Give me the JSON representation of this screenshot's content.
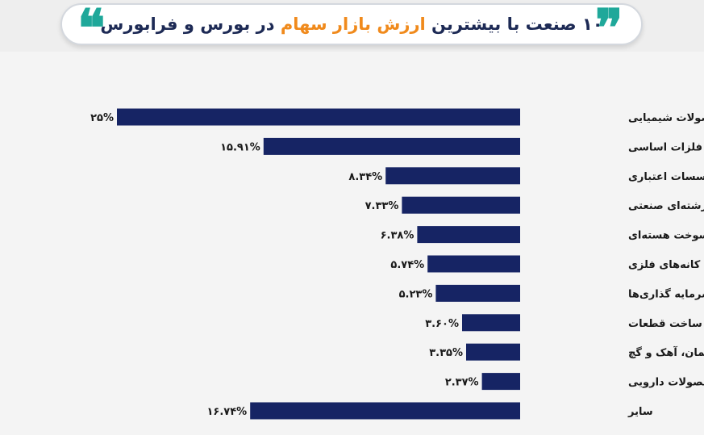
{
  "header": {
    "title_pre": "۱۰ صنعت با بیشترین",
    "title_accent": "ارزش بازار سهام",
    "title_post": "در بورس و فرابورس",
    "quote_open": "❝",
    "quote_close": "❞",
    "accent_color": "#f08a1c",
    "quote_color": "#1fa89a"
  },
  "chart_data": {
    "type": "bar",
    "orientation": "horizontal",
    "title": "۱۰ صنعت با بیشترین ارزش بازار سهام در بورس و فرابورس",
    "categories": [
      "محصولات شیمیایی",
      "فلزات اساسی",
      "بانک‌ها و موسسات اعتباری",
      "شرکت‌های چند رشته‌ای صنعتی",
      "فراورده‌های نفتی، کک و سوخت هسته‌ای",
      "استخراج کانه‌های فلزی",
      "سرمایه گذاری‌ها",
      "خودرو و ساخت قطعات",
      "سیمان، آهک و گچ",
      "مواد و محصولات دارویی",
      "سایر"
    ],
    "values": [
      25,
      15.91,
      8.34,
      7.33,
      6.38,
      5.74,
      5.23,
      3.6,
      3.35,
      2.37,
      16.74
    ],
    "value_labels": [
      "۲۵%",
      "۱۵.۹۱%",
      "۸.۳۴%",
      "۷.۳۳%",
      "۶.۳۸%",
      "۵.۷۴%",
      "۵.۲۳%",
      "۳.۶۰%",
      "۳.۳۵%",
      "۲.۳۷%",
      "۱۶.۷۴%"
    ],
    "unit": "%",
    "bar_color": "#162464",
    "grid": false,
    "legend": "none"
  }
}
